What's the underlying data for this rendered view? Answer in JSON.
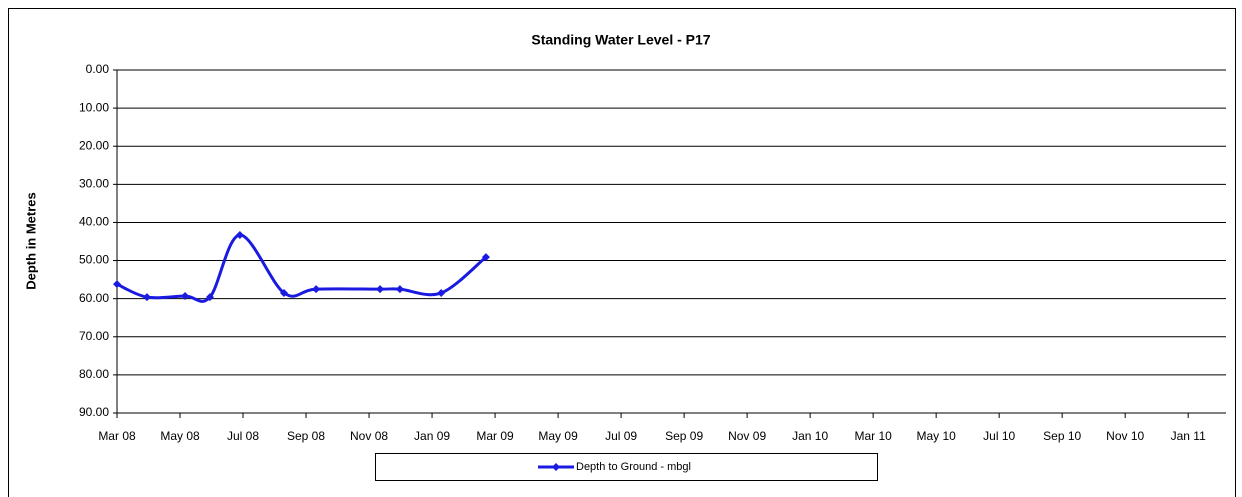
{
  "chart_data": {
    "type": "line",
    "title": "Standing Water Level - P17",
    "y_label": "Depth in Metres",
    "ylim": [
      0,
      90
    ],
    "y_inverted": true,
    "yticks": [
      {
        "value": 0,
        "label": "0.00"
      },
      {
        "value": 10,
        "label": "10.00"
      },
      {
        "value": 20,
        "label": "20.00"
      },
      {
        "value": 30,
        "label": "30.00"
      },
      {
        "value": 40,
        "label": "40.00"
      },
      {
        "value": 50,
        "label": "50.00"
      },
      {
        "value": 60,
        "label": "60.00"
      },
      {
        "value": 70,
        "label": "70.00"
      },
      {
        "value": 80,
        "label": "80.00"
      },
      {
        "value": 90,
        "label": "90.00"
      }
    ],
    "xlim": [
      0,
      35.2
    ],
    "xticks": [
      {
        "value": 0,
        "label": "Mar 08"
      },
      {
        "value": 2,
        "label": "May 08"
      },
      {
        "value": 4,
        "label": "Jul 08"
      },
      {
        "value": 6,
        "label": "Sep 08"
      },
      {
        "value": 8,
        "label": "Nov 08"
      },
      {
        "value": 10,
        "label": "Jan 09"
      },
      {
        "value": 12,
        "label": "Mar 09"
      },
      {
        "value": 14,
        "label": "May 09"
      },
      {
        "value": 16,
        "label": "Jul 09"
      },
      {
        "value": 18,
        "label": "Sep 09"
      },
      {
        "value": 20,
        "label": "Nov 09"
      },
      {
        "value": 22,
        "label": "Jan 10"
      },
      {
        "value": 24,
        "label": "Mar 10"
      },
      {
        "value": 26,
        "label": "May 10"
      },
      {
        "value": 28,
        "label": "Jul 10"
      },
      {
        "value": 30,
        "label": "Sep 10"
      },
      {
        "value": 32,
        "label": "Nov 10"
      },
      {
        "value": 34,
        "label": "Jan 11"
      }
    ],
    "grid": true,
    "smooth": true,
    "legend": "bottom",
    "x": [
      0,
      0.95,
      2.16,
      2.95,
      3.9,
      5.3,
      6.32,
      8.35,
      8.98,
      10.29,
      11.71
    ],
    "series": [
      {
        "name": "Depth to Ground - mbgl",
        "color": "#1a1ae0",
        "values": [
          56.2,
          59.6,
          59.3,
          59.6,
          43.3,
          58.5,
          57.5,
          57.5,
          57.5,
          58.5,
          49.1
        ]
      }
    ]
  }
}
